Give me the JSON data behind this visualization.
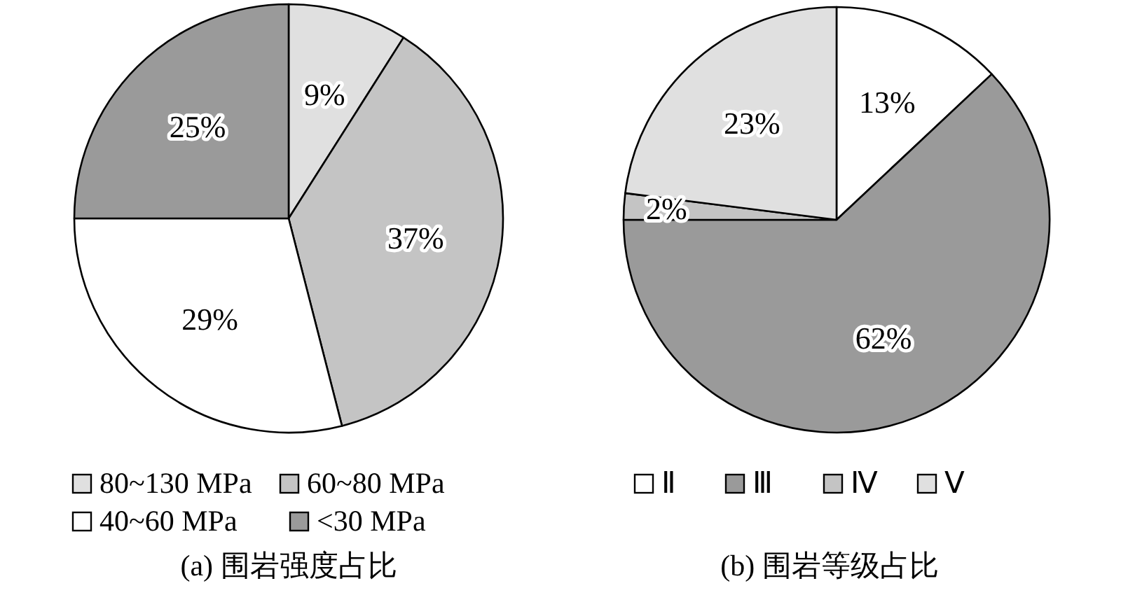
{
  "chart_data": [
    {
      "type": "pie",
      "title": "(a) 围岩强度占比",
      "categories": [
        "80~130 MPa",
        "60~80 MPa",
        "40~60 MPa",
        "<30 MPa"
      ],
      "values": [
        9,
        37,
        29,
        25
      ],
      "colors": [
        "#e0e0e0",
        "#c4c4c4",
        "#ffffff",
        "#9a9a9a"
      ],
      "value_labels": [
        "9%",
        "37%",
        "29%",
        "25%"
      ],
      "legend": "bottom"
    },
    {
      "type": "pie",
      "title": "(b) 围岩等级占比",
      "categories": [
        "Ⅱ",
        "Ⅲ",
        "Ⅳ",
        "Ⅴ"
      ],
      "values": [
        13,
        62,
        2,
        23
      ],
      "colors": [
        "#ffffff",
        "#9a9a9a",
        "#c4c4c4",
        "#e0e0e0"
      ],
      "value_labels": [
        "13%",
        "62%",
        "2%",
        "23%"
      ],
      "legend": "bottom"
    }
  ]
}
